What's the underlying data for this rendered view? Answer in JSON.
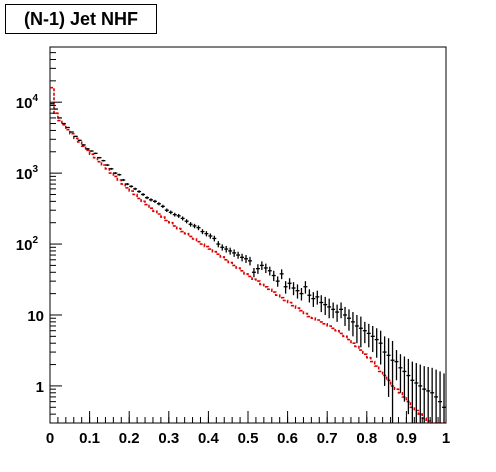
{
  "chart_data": {
    "type": "histogram",
    "title": "(N-1) Jet NHF",
    "xlabel": "",
    "ylabel": "",
    "xlim": [
      0,
      1
    ],
    "ylim": [
      0.3,
      60000
    ],
    "y_scale": "log",
    "grid": false,
    "legend": "none",
    "x_ticks": [
      {
        "value": 0,
        "label": "0"
      },
      {
        "value": 0.1,
        "label": "0.1"
      },
      {
        "value": 0.2,
        "label": "0.2"
      },
      {
        "value": 0.3,
        "label": "0.3"
      },
      {
        "value": 0.4,
        "label": "0.4"
      },
      {
        "value": 0.5,
        "label": "0.5"
      },
      {
        "value": 0.6,
        "label": "0.6"
      },
      {
        "value": 0.7,
        "label": "0.7"
      },
      {
        "value": 0.8,
        "label": "0.8"
      },
      {
        "value": 0.9,
        "label": "0.9"
      },
      {
        "value": 1,
        "label": "1"
      }
    ],
    "y_ticks": [
      {
        "value": 1,
        "label": "1",
        "exp": ""
      },
      {
        "value": 10,
        "label": "10",
        "exp": ""
      },
      {
        "value": 100,
        "label": "10",
        "exp": "2"
      },
      {
        "value": 1000,
        "label": "10",
        "exp": "3"
      },
      {
        "value": 10000,
        "label": "10",
        "exp": "4"
      }
    ],
    "series": [
      {
        "kind": "data-points",
        "color": "#000000",
        "x": [
          0.005,
          0.015,
          0.025,
          0.035,
          0.045,
          0.055,
          0.065,
          0.075,
          0.085,
          0.095,
          0.105,
          0.115,
          0.125,
          0.135,
          0.145,
          0.155,
          0.165,
          0.175,
          0.185,
          0.195,
          0.205,
          0.215,
          0.225,
          0.235,
          0.245,
          0.255,
          0.265,
          0.275,
          0.285,
          0.295,
          0.305,
          0.315,
          0.325,
          0.335,
          0.345,
          0.355,
          0.365,
          0.375,
          0.385,
          0.395,
          0.405,
          0.415,
          0.425,
          0.435,
          0.445,
          0.455,
          0.465,
          0.475,
          0.485,
          0.495,
          0.505,
          0.515,
          0.525,
          0.535,
          0.545,
          0.555,
          0.565,
          0.575,
          0.585,
          0.595,
          0.605,
          0.615,
          0.625,
          0.635,
          0.645,
          0.655,
          0.665,
          0.675,
          0.685,
          0.695,
          0.705,
          0.715,
          0.725,
          0.735,
          0.745,
          0.755,
          0.765,
          0.775,
          0.785,
          0.795,
          0.805,
          0.815,
          0.825,
          0.835,
          0.845,
          0.855,
          0.865,
          0.875,
          0.885,
          0.895,
          0.905,
          0.915,
          0.925,
          0.935,
          0.945,
          0.955,
          0.965,
          0.975,
          0.985,
          0.995
        ],
        "y": [
          9500,
          8000,
          6000,
          5000,
          4400,
          3800,
          3300,
          2900,
          2500,
          2200,
          2050,
          1900,
          1650,
          1500,
          1300,
          1150,
          1000,
          950,
          800,
          700,
          650,
          600,
          550,
          500,
          450,
          420,
          400,
          370,
          340,
          300,
          280,
          260,
          250,
          230,
          210,
          190,
          180,
          170,
          150,
          140,
          130,
          120,
          100,
          90,
          85,
          80,
          75,
          70,
          65,
          62,
          58,
          40,
          45,
          50,
          46,
          42,
          36,
          30,
          38,
          25,
          28,
          24,
          22,
          20,
          25,
          19,
          17,
          18,
          15,
          14,
          13,
          12,
          11,
          12,
          10,
          9,
          8,
          7,
          6.5,
          6,
          5.5,
          5,
          4.5,
          4,
          3,
          2.7,
          2.3,
          2.2,
          1.8,
          1.6,
          1.4,
          1.2,
          1.1,
          1.0,
          0.9,
          0.85,
          0.8,
          0.7,
          0.6,
          0.5
        ],
        "y_err": [
          98,
          90,
          77,
          71,
          66,
          62,
          57,
          54,
          50,
          47,
          45,
          44,
          41,
          39,
          36,
          34,
          32,
          31,
          28,
          26,
          25,
          24,
          23,
          22,
          21,
          21,
          20,
          19,
          18,
          17,
          17,
          16,
          16,
          15,
          14,
          14,
          13,
          13,
          12,
          12,
          11,
          11,
          10,
          9,
          9,
          9,
          9,
          8,
          8,
          8,
          8,
          6,
          7,
          7,
          7,
          6,
          6,
          5,
          6,
          5,
          5,
          5,
          5,
          4,
          5,
          4,
          4,
          4,
          4,
          4,
          4,
          3,
          3,
          3,
          3,
          3,
          3,
          3,
          3,
          2,
          2,
          2,
          2,
          2,
          2,
          2,
          2,
          1,
          1,
          1,
          1,
          1,
          1,
          1,
          1,
          1,
          1,
          1,
          1,
          1
        ]
      },
      {
        "kind": "step-line",
        "color": "#dd0000",
        "x": [
          0.005,
          0.015,
          0.025,
          0.035,
          0.045,
          0.055,
          0.065,
          0.075,
          0.085,
          0.095,
          0.105,
          0.115,
          0.125,
          0.135,
          0.145,
          0.155,
          0.165,
          0.175,
          0.185,
          0.195,
          0.205,
          0.215,
          0.225,
          0.235,
          0.245,
          0.255,
          0.265,
          0.275,
          0.285,
          0.295,
          0.305,
          0.315,
          0.325,
          0.335,
          0.345,
          0.355,
          0.365,
          0.375,
          0.385,
          0.395,
          0.405,
          0.415,
          0.425,
          0.435,
          0.445,
          0.455,
          0.465,
          0.475,
          0.485,
          0.495,
          0.505,
          0.515,
          0.525,
          0.535,
          0.545,
          0.555,
          0.565,
          0.575,
          0.585,
          0.595,
          0.605,
          0.615,
          0.625,
          0.635,
          0.645,
          0.655,
          0.665,
          0.675,
          0.685,
          0.695,
          0.705,
          0.715,
          0.725,
          0.735,
          0.745,
          0.755,
          0.765,
          0.775,
          0.785,
          0.795,
          0.805,
          0.815,
          0.825,
          0.835,
          0.845,
          0.855,
          0.865,
          0.875,
          0.885,
          0.895,
          0.905,
          0.915,
          0.925,
          0.935,
          0.945,
          0.955,
          0.965,
          0.975,
          0.985,
          0.995
        ],
        "y": [
          16000,
          7000,
          5500,
          4800,
          4100,
          3600,
          3100,
          2750,
          2400,
          2100,
          1850,
          1650,
          1450,
          1300,
          1150,
          1000,
          900,
          800,
          700,
          620,
          560,
          500,
          440,
          400,
          360,
          320,
          290,
          265,
          240,
          215,
          200,
          180,
          165,
          150,
          140,
          128,
          118,
          108,
          100,
          92,
          85,
          78,
          72,
          66,
          60,
          55,
          50,
          46,
          42,
          38,
          35,
          32,
          30,
          27,
          25,
          23,
          21,
          19,
          17.5,
          16,
          15,
          13.5,
          12.5,
          11.5,
          10.5,
          9.5,
          9,
          8.5,
          8,
          7.5,
          7,
          6.5,
          6,
          5.5,
          5,
          4.5,
          4,
          3.6,
          3.2,
          2.8,
          2.5,
          2.2,
          1.9,
          1.6,
          1.4,
          1.2,
          1.0,
          0.9,
          0.8,
          0.7,
          0.6,
          0.5,
          0.45,
          0.4,
          0.35,
          0.32,
          0.3,
          0.3,
          0.3,
          0.3
        ]
      }
    ]
  }
}
